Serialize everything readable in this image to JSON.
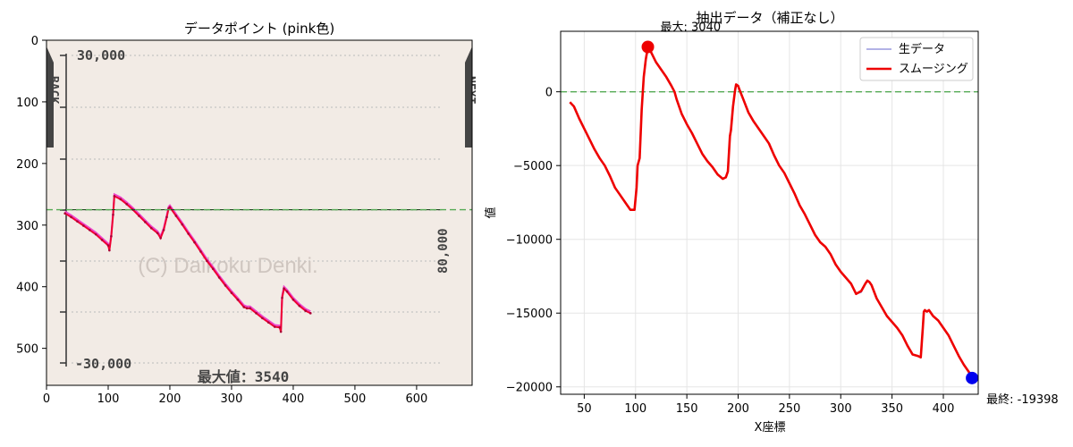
{
  "chart_data": [
    {
      "type": "image",
      "title": "データポイント (pink色)",
      "xlim": [
        0,
        690
      ],
      "ylim": [
        560,
        0
      ],
      "x_ticks": [
        0,
        100,
        200,
        300,
        400,
        500,
        600
      ],
      "y_ticks": [
        0,
        100,
        200,
        300,
        400,
        500
      ],
      "image_text": {
        "top_value": "30,000",
        "bottom_value": "-30,000",
        "right_value": "80,000",
        "back": "BACK",
        "next": "NEXT",
        "watermark": "(C) Daikoku Denki.",
        "max_label": "最大値：3540"
      },
      "reference_line_y": 275,
      "pink_points": {
        "x": [
          30,
          40,
          50,
          60,
          70,
          80,
          90,
          100,
          102,
          105,
          108,
          110,
          120,
          130,
          140,
          150,
          160,
          170,
          180,
          185,
          190,
          195,
          198,
          200,
          210,
          220,
          230,
          240,
          250,
          260,
          270,
          280,
          290,
          300,
          310,
          320,
          325,
          330,
          340,
          350,
          360,
          370,
          378,
          380,
          382,
          385,
          390,
          400,
          410,
          420,
          428
        ],
        "y": [
          278,
          284,
          291,
          298,
          305,
          312,
          321,
          330,
          338,
          315,
          280,
          250,
          255,
          263,
          272,
          282,
          292,
          302,
          310,
          318,
          305,
          284,
          270,
          268,
          282,
          296,
          311,
          325,
          340,
          355,
          368,
          382,
          395,
          407,
          418,
          430,
          432,
          432,
          440,
          448,
          455,
          462,
          463,
          470,
          415,
          400,
          405,
          418,
          428,
          436,
          440
        ]
      },
      "pink_point_y": [
        281,
        287,
        294,
        301,
        308,
        315,
        324,
        333,
        341,
        318,
        283,
        253,
        258,
        266,
        275,
        285,
        295,
        305,
        313,
        321,
        308,
        287,
        273,
        271,
        285,
        299,
        314,
        328,
        343,
        358,
        371,
        385,
        398,
        410,
        421,
        433,
        435,
        435,
        443,
        451,
        458,
        465,
        466,
        473,
        418,
        403,
        408,
        421,
        431,
        439,
        443
      ]
    },
    {
      "type": "line",
      "title": "抽出データ（補正なし）",
      "xlabel": "X座標",
      "ylabel": "値",
      "xlim": [
        27,
        434
      ],
      "ylim": [
        -20500,
        4100
      ],
      "x_ticks": [
        50,
        100,
        150,
        200,
        250,
        300,
        350,
        400
      ],
      "y_ticks": [
        0,
        -5000,
        -10000,
        -15000,
        -20000
      ],
      "y_tick_labels": [
        "0",
        "−5000",
        "−10000",
        "−15000",
        "−20000"
      ],
      "grid": true,
      "legend": "top-right",
      "reference_line_y": 0,
      "series": [
        {
          "name": "生データ",
          "color": "#9999dd",
          "x": [
            36,
            40,
            45,
            50,
            55,
            60,
            65,
            70,
            75,
            80,
            85,
            90,
            95,
            99,
            101,
            102,
            104,
            106,
            108,
            110,
            112,
            115,
            120,
            125,
            130,
            135,
            138,
            140,
            145,
            150,
            155,
            160,
            165,
            170,
            175,
            180,
            185,
            188,
            190,
            192,
            193,
            195,
            197,
            198,
            200,
            201,
            205,
            210,
            215,
            220,
            225,
            230,
            235,
            240,
            245,
            250,
            255,
            260,
            265,
            270,
            275,
            280,
            285,
            290,
            295,
            300,
            305,
            310,
            315,
            320,
            324,
            326,
            328,
            330,
            335,
            340,
            345,
            350,
            355,
            360,
            365,
            370,
            375,
            378,
            380,
            381,
            382,
            384,
            386,
            390,
            395,
            400,
            405,
            410,
            415,
            420,
            425,
            428
          ],
          "y": [
            -700,
            -1000,
            -1800,
            -2500,
            -3200,
            -3900,
            -4500,
            -5000,
            -5700,
            -6500,
            -7000,
            -7500,
            -8000,
            -8000,
            -6500,
            -5000,
            -4500,
            -1200,
            1000,
            2200,
            3000,
            2700,
            2000,
            1500,
            1000,
            400,
            0,
            -500,
            -1500,
            -2200,
            -2800,
            -3500,
            -4200,
            -4700,
            -5100,
            -5600,
            -5900,
            -5800,
            -5400,
            -3000,
            -2600,
            -1000,
            100,
            500,
            400,
            200,
            -500,
            -1400,
            -2000,
            -2500,
            -3000,
            -3500,
            -4300,
            -5000,
            -5500,
            -6200,
            -6900,
            -7700,
            -8300,
            -9000,
            -9700,
            -10200,
            -10500,
            -11000,
            -11700,
            -12200,
            -12600,
            -13000,
            -13700,
            -13600,
            -13000,
            -12800,
            -12900,
            -13100,
            -14000,
            -14600,
            -15200,
            -15600,
            -16000,
            -16500,
            -17200,
            -17800,
            -17900,
            -18000,
            -16000,
            -14900,
            -14800,
            -14900,
            -14800,
            -15200,
            -15500,
            -16000,
            -16500,
            -17200,
            -17900,
            -18500,
            -19000,
            -19398
          ]
        },
        {
          "name": "スムージング",
          "color": "#ee0000",
          "x": [
            36,
            40,
            45,
            50,
            55,
            60,
            65,
            70,
            75,
            80,
            85,
            90,
            95,
            99,
            101,
            102,
            104,
            106,
            108,
            110,
            112,
            115,
            120,
            125,
            130,
            135,
            138,
            140,
            145,
            150,
            155,
            160,
            165,
            170,
            175,
            180,
            185,
            188,
            190,
            192,
            193,
            195,
            197,
            198,
            200,
            201,
            205,
            210,
            215,
            220,
            225,
            230,
            235,
            240,
            245,
            250,
            255,
            260,
            265,
            270,
            275,
            280,
            285,
            290,
            295,
            300,
            305,
            310,
            315,
            320,
            324,
            326,
            328,
            330,
            335,
            340,
            345,
            350,
            355,
            360,
            365,
            370,
            375,
            378,
            380,
            381,
            382,
            384,
            386,
            390,
            395,
            400,
            405,
            410,
            415,
            420,
            425,
            428
          ],
          "y": [
            -700,
            -1000,
            -1800,
            -2500,
            -3200,
            -3900,
            -4500,
            -5000,
            -5700,
            -6500,
            -7000,
            -7500,
            -8000,
            -8000,
            -6500,
            -5000,
            -4500,
            -1200,
            1000,
            2200,
            3000,
            2700,
            2000,
            1500,
            1000,
            400,
            0,
            -500,
            -1500,
            -2200,
            -2800,
            -3500,
            -4200,
            -4700,
            -5100,
            -5600,
            -5900,
            -5800,
            -5400,
            -3000,
            -2600,
            -1000,
            100,
            500,
            400,
            200,
            -500,
            -1400,
            -2000,
            -2500,
            -3000,
            -3500,
            -4300,
            -5000,
            -5500,
            -6200,
            -6900,
            -7700,
            -8300,
            -9000,
            -9700,
            -10200,
            -10500,
            -11000,
            -11700,
            -12200,
            -12600,
            -13000,
            -13700,
            -13500,
            -13000,
            -12800,
            -12900,
            -13100,
            -14000,
            -14600,
            -15200,
            -15600,
            -16000,
            -16500,
            -17200,
            -17800,
            -17900,
            -18000,
            -16000,
            -14900,
            -14800,
            -14900,
            -14800,
            -15200,
            -15500,
            -16000,
            -16500,
            -17200,
            -17900,
            -18500,
            -19000,
            -19398
          ]
        }
      ],
      "annotations": [
        {
          "text": "最大: 3040",
          "x": 112,
          "y": 3040,
          "color": "#ee0000"
        },
        {
          "text": "最終: -19398",
          "x": 428,
          "y": -19398,
          "color": "#0000ee"
        }
      ]
    }
  ]
}
